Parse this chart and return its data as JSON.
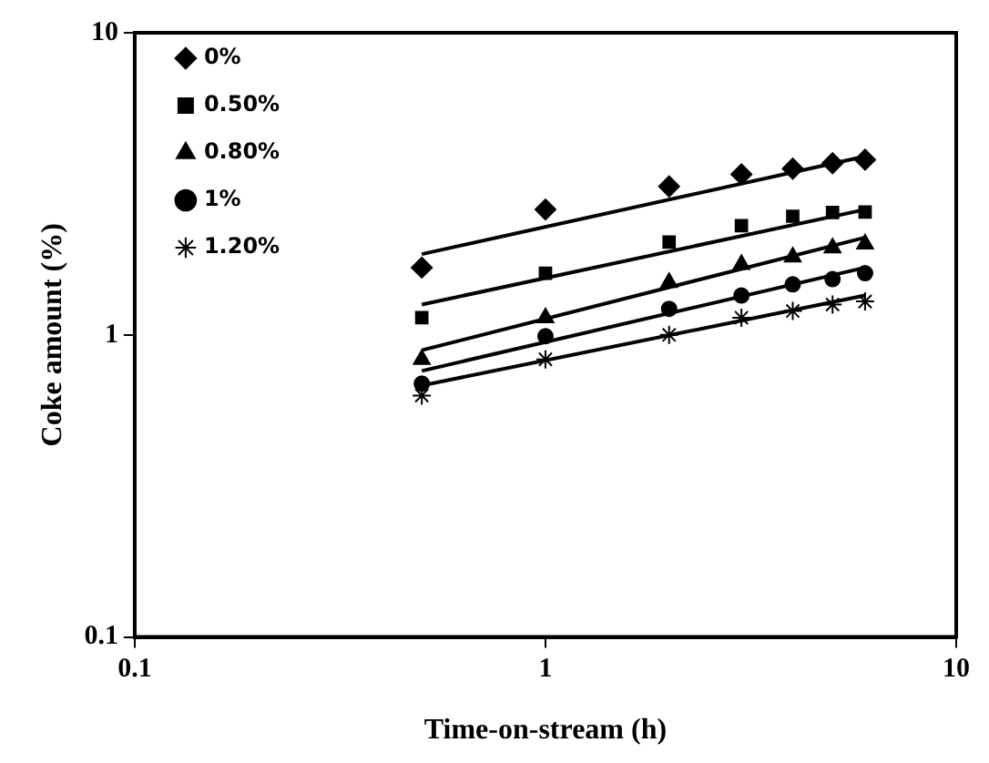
{
  "chart_data": {
    "type": "scatter",
    "xlabel": "Time-on-stream (h)",
    "ylabel": "Coke amount (%)",
    "log": "xy",
    "xlim": [
      0.1,
      10
    ],
    "ylim": [
      0.1,
      10
    ],
    "xticks": [
      0.1,
      1,
      10
    ],
    "yticks": [
      0.1,
      1,
      10
    ],
    "legend": "top left",
    "grid": false,
    "series": [
      {
        "name": "0%",
        "color": "#000000",
        "marker": "diamond",
        "x": [
          0.5,
          1,
          2,
          3,
          4,
          5,
          6
        ],
        "values": [
          1.67,
          2.6,
          3.1,
          3.4,
          3.55,
          3.7,
          3.8
        ]
      },
      {
        "name": "0.50%",
        "color": "#000000",
        "marker": "square",
        "x": [
          0.5,
          1,
          2,
          3,
          4,
          5,
          6
        ],
        "values": [
          1.14,
          1.6,
          2.03,
          2.3,
          2.47,
          2.54,
          2.55
        ]
      },
      {
        "name": "0.80%",
        "color": "#000000",
        "marker": "triangle",
        "x": [
          0.5,
          1,
          2,
          3,
          4,
          5,
          6
        ],
        "values": [
          0.83,
          1.14,
          1.49,
          1.71,
          1.81,
          1.94,
          2.0
        ]
      },
      {
        "name": "1%",
        "color": "#000000",
        "marker": "circle",
        "x": [
          0.5,
          1,
          2,
          3,
          4,
          5,
          6
        ],
        "values": [
          0.69,
          0.99,
          1.22,
          1.35,
          1.47,
          1.53,
          1.6
        ]
      },
      {
        "name": "1.20%",
        "color": "#000000",
        "marker": "cross",
        "x": [
          0.5,
          1,
          2,
          3,
          4,
          5,
          6
        ],
        "values": [
          0.63,
          0.83,
          1.0,
          1.14,
          1.2,
          1.26,
          1.29
        ]
      },
      {
        "type": "line",
        "color": "#000000",
        "marker": "none",
        "x": [
          0.5,
          6
        ],
        "values": [
          1.85,
          3.9
        ]
      },
      {
        "type": "line",
        "color": "#000000",
        "marker": "none",
        "x": [
          0.5,
          6
        ],
        "values": [
          1.26,
          2.6
        ]
      },
      {
        "type": "line",
        "color": "#000000",
        "marker": "none",
        "x": [
          0.5,
          6
        ],
        "values": [
          0.89,
          2.1
        ]
      },
      {
        "type": "line",
        "color": "#000000",
        "marker": "none",
        "x": [
          0.5,
          6
        ],
        "values": [
          0.76,
          1.67
        ]
      },
      {
        "type": "line",
        "color": "#000000",
        "marker": "none",
        "x": [
          0.5,
          6
        ],
        "values": [
          0.68,
          1.35
        ]
      }
    ]
  }
}
